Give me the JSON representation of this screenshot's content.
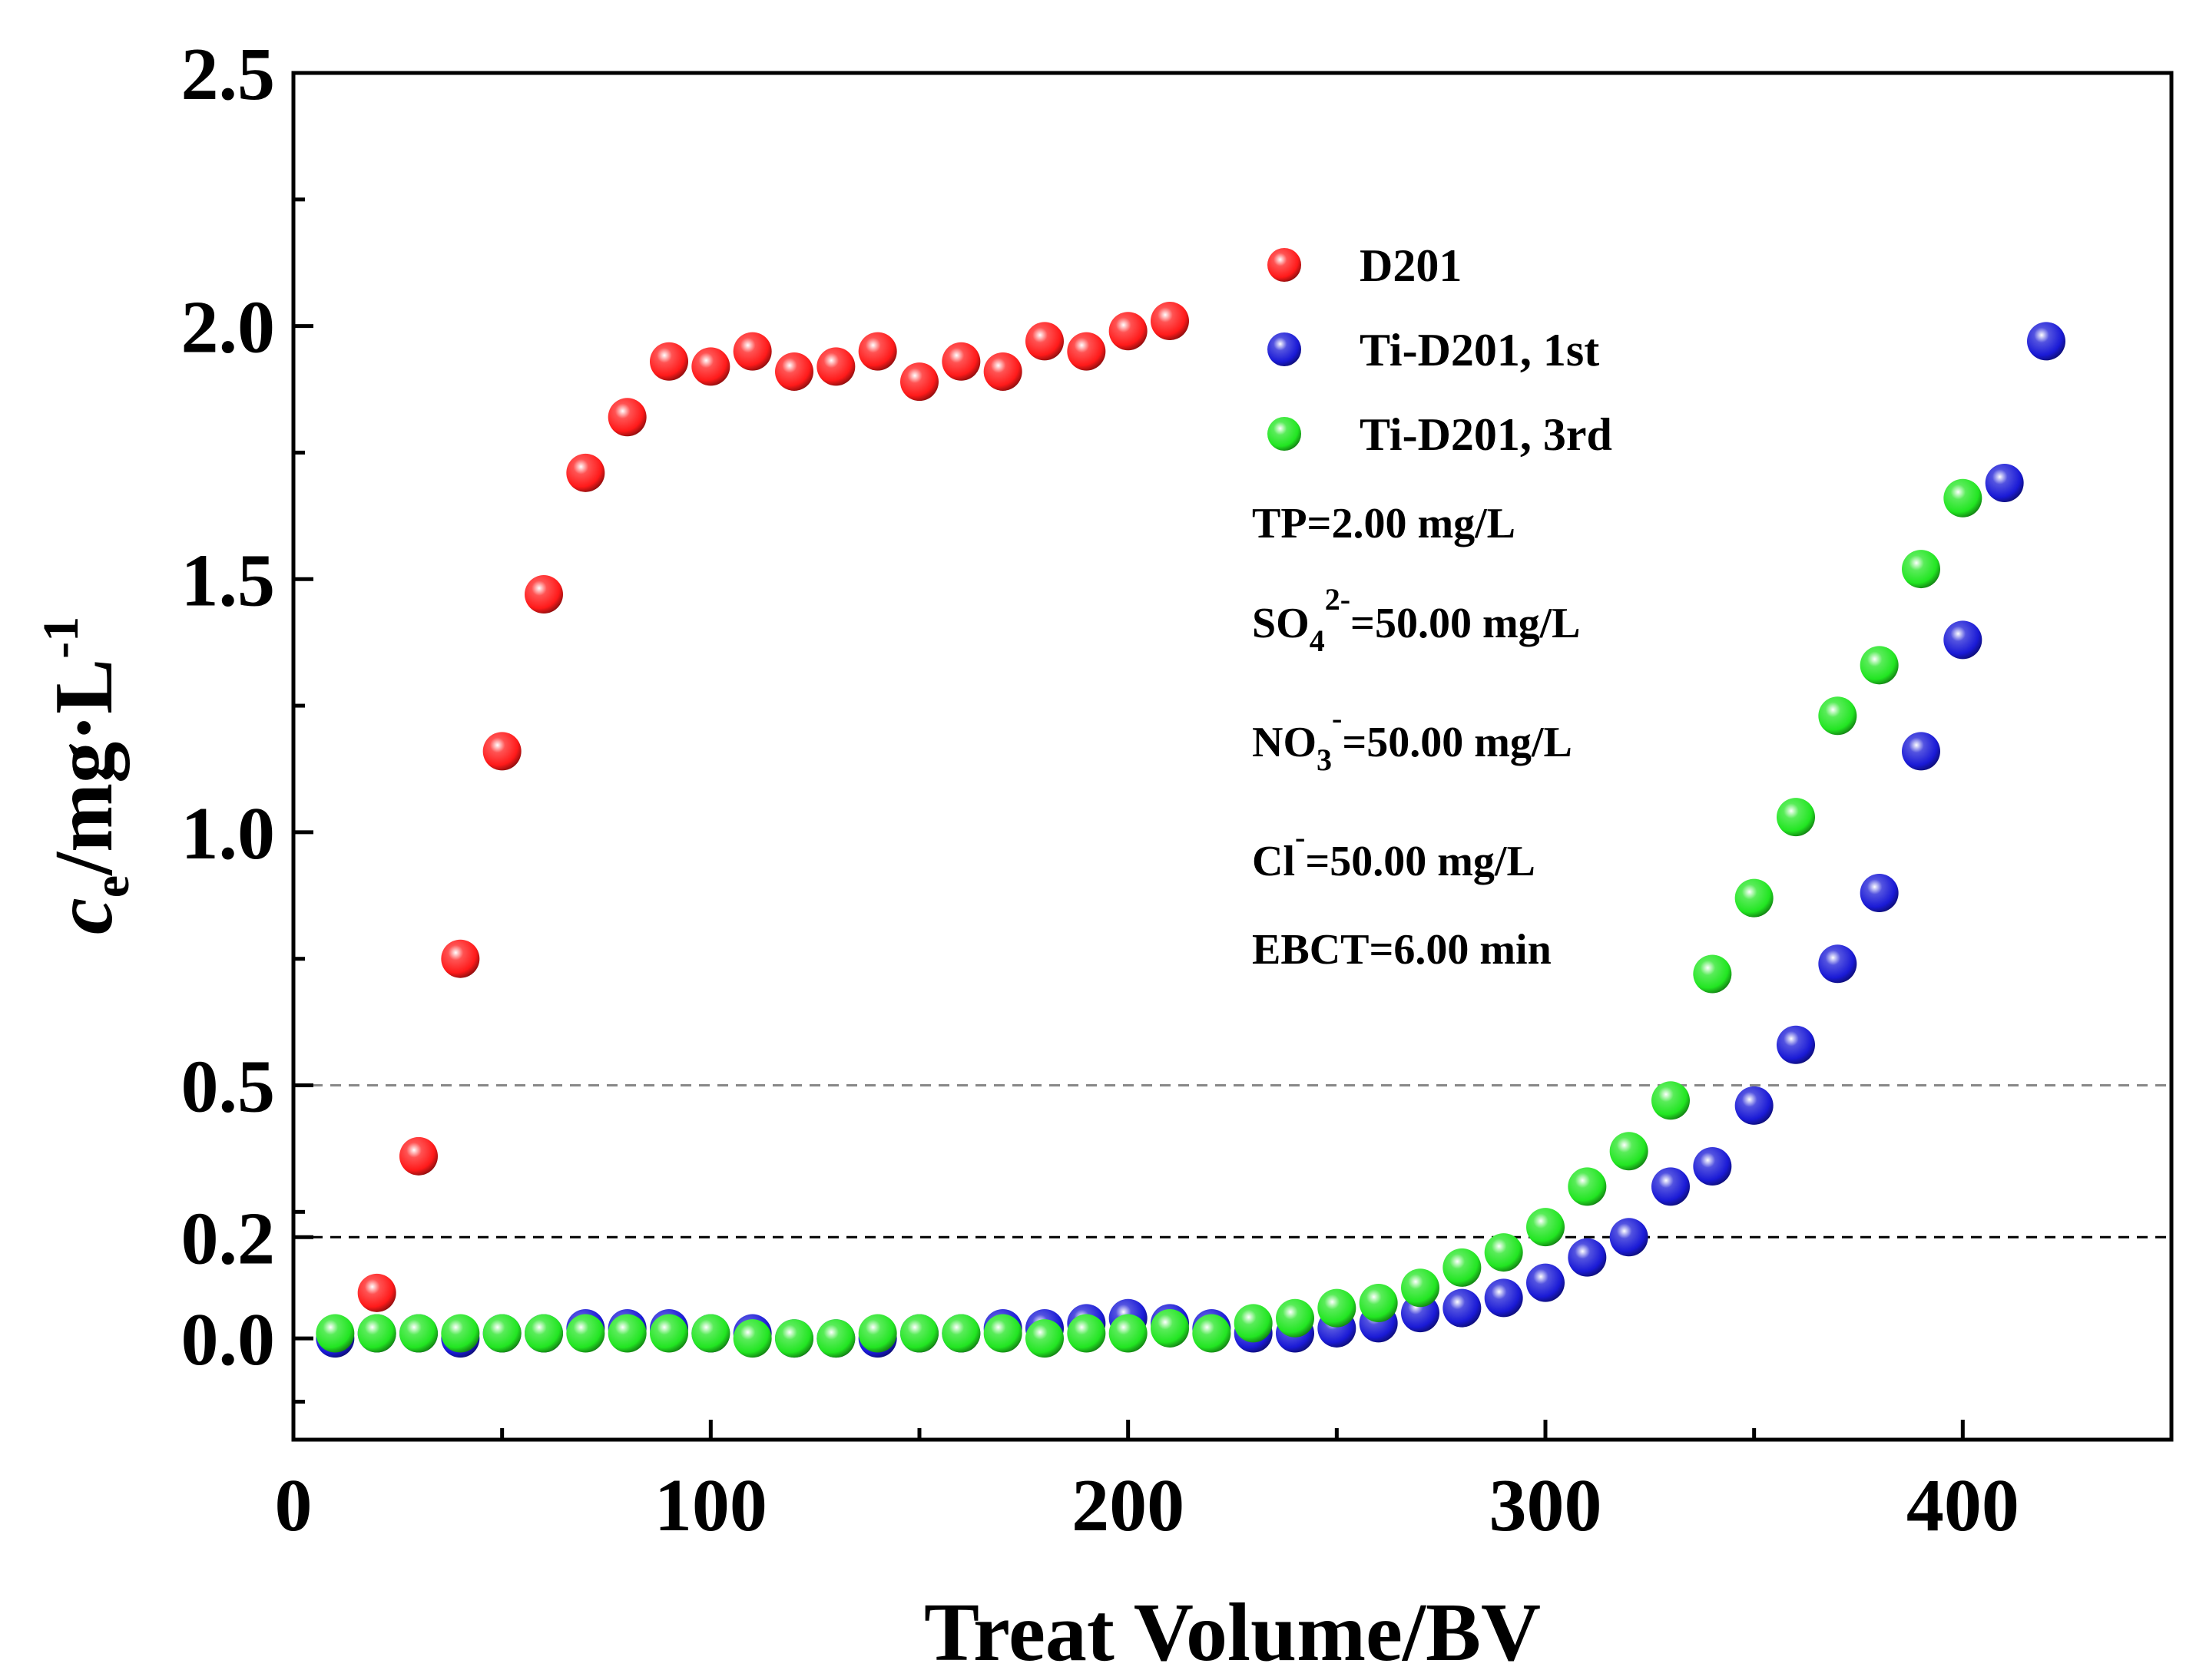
{
  "chart_data": {
    "type": "scatter",
    "title": "",
    "xlabel": "Treat Volume/BV",
    "ylabel": {
      "main": "c",
      "sub": "e",
      "unit": "/mg·L",
      "sup": "-1"
    },
    "xlim": [
      0,
      450
    ],
    "ylim": [
      -0.2,
      2.5
    ],
    "x_ticks": [
      "0",
      "100",
      "200",
      "300",
      "400"
    ],
    "y_ticks": [
      {
        "value": 0.0,
        "label": "0.0"
      },
      {
        "value": 0.2,
        "label": "0.2"
      },
      {
        "value": 0.5,
        "label": "0.5"
      },
      {
        "value": 1.0,
        "label": "1.0"
      },
      {
        "value": 1.5,
        "label": "1.5"
      },
      {
        "value": 2.0,
        "label": "2.0"
      },
      {
        "value": 2.5,
        "label": "2.5"
      }
    ],
    "y_ticks_minor": [
      -0.125,
      0.25,
      0.75,
      1.25,
      1.75,
      2.25
    ],
    "reference_lines": [
      {
        "y": 0.2,
        "color": "#000000",
        "style": "dashed"
      },
      {
        "y": 0.5,
        "color": "#888888",
        "style": "dashed"
      }
    ],
    "legend_position": "top-right",
    "series": [
      {
        "name": "D201",
        "color": "#ff1a1a",
        "x": [
          20,
          30,
          40,
          50,
          60,
          70,
          80,
          90,
          100,
          110,
          120,
          130,
          140,
          150,
          160,
          170,
          180,
          190,
          200,
          210
        ],
        "y": [
          0.09,
          0.36,
          0.75,
          1.16,
          1.47,
          1.71,
          1.82,
          1.93,
          1.92,
          1.95,
          1.91,
          1.92,
          1.95,
          1.89,
          1.93,
          1.91,
          1.97,
          1.95,
          1.99,
          2.01
        ]
      },
      {
        "name": "Ti-D201, 1st",
        "color": "#1a1ad6",
        "x": [
          10,
          20,
          30,
          40,
          50,
          60,
          70,
          80,
          90,
          100,
          110,
          120,
          130,
          140,
          150,
          160,
          170,
          180,
          190,
          200,
          210,
          220,
          230,
          240,
          250,
          260,
          270,
          280,
          290,
          300,
          310,
          320,
          330,
          340,
          350,
          360,
          370,
          380,
          390,
          400,
          410,
          420
        ],
        "y": [
          0.0,
          0.01,
          0.01,
          0.0,
          0.01,
          0.01,
          0.02,
          0.02,
          0.02,
          0.01,
          0.01,
          0.0,
          0.0,
          0.0,
          0.01,
          0.01,
          0.02,
          0.02,
          0.03,
          0.04,
          0.03,
          0.02,
          0.01,
          0.01,
          0.02,
          0.03,
          0.05,
          0.06,
          0.08,
          0.11,
          0.16,
          0.2,
          0.3,
          0.34,
          0.46,
          0.58,
          0.74,
          0.88,
          1.16,
          1.38,
          1.69,
          1.97
        ]
      },
      {
        "name": "Ti-D201, 3rd",
        "color": "#22e622",
        "x": [
          10,
          20,
          30,
          40,
          50,
          60,
          70,
          80,
          90,
          100,
          110,
          120,
          130,
          140,
          150,
          160,
          170,
          180,
          190,
          200,
          210,
          220,
          230,
          240,
          250,
          260,
          270,
          280,
          290,
          300,
          310,
          320,
          330,
          340,
          350,
          360,
          370,
          380,
          390,
          400
        ],
        "y": [
          0.01,
          0.01,
          0.01,
          0.01,
          0.01,
          0.01,
          0.01,
          0.01,
          0.01,
          0.01,
          0.0,
          0.0,
          0.0,
          0.01,
          0.01,
          0.01,
          0.01,
          0.0,
          0.01,
          0.01,
          0.02,
          0.01,
          0.03,
          0.04,
          0.06,
          0.07,
          0.1,
          0.14,
          0.17,
          0.22,
          0.3,
          0.37,
          0.47,
          0.72,
          0.87,
          1.03,
          1.23,
          1.33,
          1.52,
          1.66
        ]
      }
    ],
    "annotations": [
      {
        "id": "tp",
        "parts": [
          {
            "t": "TP=2.00 mg/L"
          }
        ]
      },
      {
        "id": "so4",
        "parts": [
          {
            "t": "SO"
          },
          {
            "t": "4",
            "pos": "sub"
          },
          {
            "t": "2-",
            "pos": "sup"
          },
          {
            "t": "=50.00 mg/L"
          }
        ]
      },
      {
        "id": "no3",
        "parts": [
          {
            "t": "NO"
          },
          {
            "t": "3",
            "pos": "sub"
          },
          {
            "t": "-",
            "pos": "sup"
          },
          {
            "t": "=50.00 mg/L"
          }
        ]
      },
      {
        "id": "cl",
        "parts": [
          {
            "t": "Cl"
          },
          {
            "t": "-",
            "pos": "sup"
          },
          {
            "t": "=50.00 mg/L"
          }
        ]
      },
      {
        "id": "ebct",
        "parts": [
          {
            "t": "EBCT=6.00 min"
          }
        ]
      }
    ]
  }
}
